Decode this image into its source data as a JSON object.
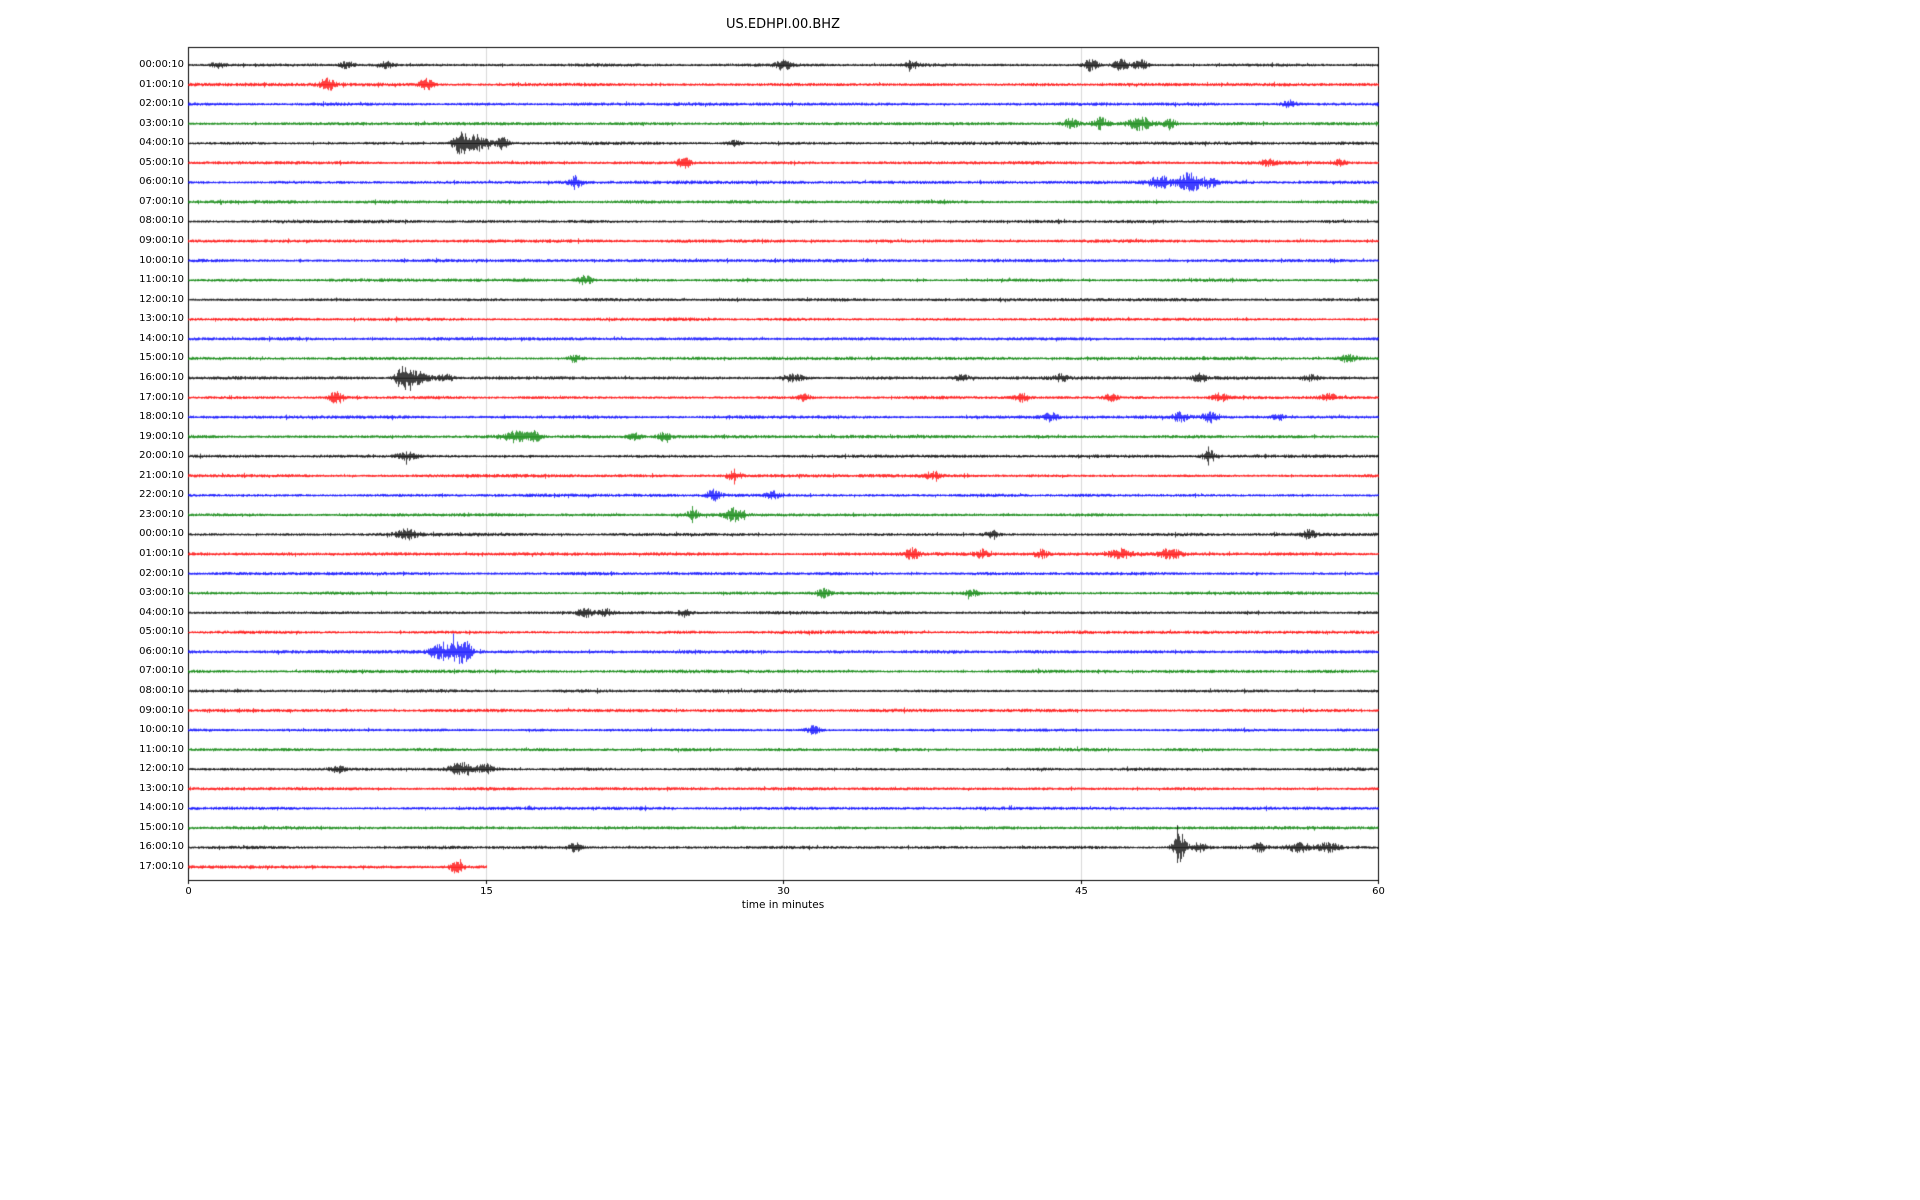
{
  "title": "US.EDHPI.00.BHZ",
  "chart_data": {
    "type": "line",
    "subtype": "helicorder-seismogram",
    "title": "US.EDHPI.00.BHZ",
    "xlabel": "time in minutes",
    "xlim": [
      0,
      60
    ],
    "x_ticks": [
      0,
      15,
      30,
      45,
      60
    ],
    "grid": "vertical-gridlines-at-15-30-45",
    "legend": "none",
    "background_color": "#ffffff",
    "gridline_color": "#d9d9d9",
    "trace_colors_cycle": [
      "#000000",
      "#ff0000",
      "#0000ff",
      "#008000"
    ],
    "rows": [
      {
        "label": "00:00:10",
        "color": "#000000",
        "start": 0,
        "end": 60,
        "events": [
          {
            "m": 1.5,
            "a": 2
          },
          {
            "m": 8,
            "a": 2.5
          },
          {
            "m": 10,
            "a": 2
          },
          {
            "m": 30,
            "a": 3
          },
          {
            "m": 36.5,
            "a": 2
          },
          {
            "m": 45.5,
            "a": 4
          },
          {
            "m": 47,
            "a": 4.5
          },
          {
            "m": 48,
            "a": 3
          }
        ]
      },
      {
        "label": "01:00:10",
        "color": "#ff0000",
        "start": 0,
        "end": 60,
        "events": [
          {
            "m": 7,
            "a": 4
          },
          {
            "m": 12,
            "a": 3.5
          }
        ]
      },
      {
        "label": "02:00:10",
        "color": "#0000ff",
        "start": 0,
        "end": 60,
        "events": [
          {
            "m": 55.5,
            "a": 2.5
          }
        ]
      },
      {
        "label": "03:00:10",
        "color": "#008000",
        "start": 0,
        "end": 60,
        "events": [
          {
            "m": 44.5,
            "a": 3
          },
          {
            "m": 46,
            "a": 3.5
          },
          {
            "m": 48,
            "a": 4,
            "w": 0.4
          },
          {
            "m": 49.5,
            "a": 2.5
          }
        ]
      },
      {
        "label": "04:00:10",
        "color": "#000000",
        "start": 0,
        "end": 60,
        "events": [
          {
            "m": 13.7,
            "a": 7
          },
          {
            "m": 14.5,
            "a": 5,
            "w": 0.4
          },
          {
            "m": 15.8,
            "a": 3.5
          },
          {
            "m": 27.5,
            "a": 1.8
          }
        ]
      },
      {
        "label": "05:00:10",
        "color": "#ff0000",
        "start": 0,
        "end": 60,
        "events": [
          {
            "m": 25,
            "a": 3.5
          },
          {
            "m": 54.5,
            "a": 2
          },
          {
            "m": 58,
            "a": 2
          }
        ]
      },
      {
        "label": "06:00:10",
        "color": "#0000ff",
        "start": 0,
        "end": 60,
        "events": [
          {
            "m": 19.5,
            "a": 4
          },
          {
            "m": 49,
            "a": 4,
            "w": 0.4
          },
          {
            "m": 50.5,
            "a": 6,
            "w": 0.4
          },
          {
            "m": 51.5,
            "a": 3
          }
        ]
      },
      {
        "label": "07:00:10",
        "color": "#008000",
        "start": 0,
        "end": 60,
        "events": []
      },
      {
        "label": "08:00:10",
        "color": "#000000",
        "start": 0,
        "end": 60,
        "events": []
      },
      {
        "label": "09:00:10",
        "color": "#ff0000",
        "start": 0,
        "end": 60,
        "events": []
      },
      {
        "label": "10:00:10",
        "color": "#0000ff",
        "start": 0,
        "end": 60,
        "events": []
      },
      {
        "label": "11:00:10",
        "color": "#008000",
        "start": 0,
        "end": 60,
        "events": [
          {
            "m": 20,
            "a": 3
          }
        ]
      },
      {
        "label": "12:00:10",
        "color": "#000000",
        "start": 0,
        "end": 60,
        "events": []
      },
      {
        "label": "13:00:10",
        "color": "#ff0000",
        "start": 0,
        "end": 60,
        "events": []
      },
      {
        "label": "14:00:10",
        "color": "#0000ff",
        "start": 0,
        "end": 60,
        "events": []
      },
      {
        "label": "15:00:10",
        "color": "#008000",
        "start": 0,
        "end": 60,
        "events": [
          {
            "m": 19.5,
            "a": 2.5
          },
          {
            "m": 58.5,
            "a": 2.5
          }
        ]
      },
      {
        "label": "16:00:10",
        "color": "#000000",
        "start": 0,
        "end": 60,
        "events": [
          {
            "m": 10.8,
            "a": 6
          },
          {
            "m": 11.5,
            "a": 4,
            "w": 0.5
          },
          {
            "m": 13,
            "a": 2.5
          },
          {
            "m": 30.5,
            "a": 2.5,
            "w": 0.4
          },
          {
            "m": 39,
            "a": 2
          },
          {
            "m": 44,
            "a": 2
          },
          {
            "m": 51,
            "a": 2.5
          },
          {
            "m": 56.5,
            "a": 2
          }
        ]
      },
      {
        "label": "17:00:10",
        "color": "#ff0000",
        "start": 0,
        "end": 60,
        "events": [
          {
            "m": 7.5,
            "a": 4
          },
          {
            "m": 31,
            "a": 2
          },
          {
            "m": 42,
            "a": 2.5
          },
          {
            "m": 46.5,
            "a": 2
          },
          {
            "m": 52,
            "a": 2.5
          },
          {
            "m": 57.5,
            "a": 2.5
          }
        ]
      },
      {
        "label": "18:00:10",
        "color": "#0000ff",
        "start": 0,
        "end": 60,
        "events": [
          {
            "m": 43.5,
            "a": 2.5
          },
          {
            "m": 50,
            "a": 3
          },
          {
            "m": 51.5,
            "a": 3.5
          },
          {
            "m": 55,
            "a": 2
          }
        ]
      },
      {
        "label": "19:00:10",
        "color": "#008000",
        "start": 0,
        "end": 60,
        "events": [
          {
            "m": 16.5,
            "a": 3.5,
            "w": 0.5
          },
          {
            "m": 17.5,
            "a": 3
          },
          {
            "m": 22.5,
            "a": 2.5
          },
          {
            "m": 24,
            "a": 2.5
          }
        ]
      },
      {
        "label": "20:00:10",
        "color": "#000000",
        "start": 0,
        "end": 60,
        "events": [
          {
            "m": 11,
            "a": 2.5,
            "w": 0.4
          },
          {
            "m": 51.5,
            "a": 3.5
          }
        ]
      },
      {
        "label": "21:00:10",
        "color": "#ff0000",
        "start": 0,
        "end": 60,
        "events": [
          {
            "m": 27.5,
            "a": 3
          },
          {
            "m": 37.5,
            "a": 2.5
          }
        ]
      },
      {
        "label": "22:00:10",
        "color": "#0000ff",
        "start": 0,
        "end": 60,
        "events": [
          {
            "m": 26.5,
            "a": 3.5
          },
          {
            "m": 29.5,
            "a": 2.5
          }
        ]
      },
      {
        "label": "23:00:10",
        "color": "#008000",
        "start": 0,
        "end": 60,
        "events": [
          {
            "m": 25.5,
            "a": 2.5
          },
          {
            "m": 27.5,
            "a": 4,
            "w": 0.3
          }
        ]
      },
      {
        "label": "00:00:10",
        "color": "#000000",
        "start": 0,
        "end": 60,
        "events": [
          {
            "m": 11,
            "a": 3,
            "w": 0.4
          },
          {
            "m": 40.5,
            "a": 2
          },
          {
            "m": 56.5,
            "a": 2.5
          }
        ]
      },
      {
        "label": "01:00:10",
        "color": "#ff0000",
        "start": 0,
        "end": 60,
        "events": [
          {
            "m": 36.5,
            "a": 3.5
          },
          {
            "m": 40,
            "a": 2.5
          },
          {
            "m": 43,
            "a": 2.5
          },
          {
            "m": 47,
            "a": 3,
            "w": 0.4
          },
          {
            "m": 49.5,
            "a": 3,
            "w": 0.4
          }
        ]
      },
      {
        "label": "02:00:10",
        "color": "#0000ff",
        "start": 0,
        "end": 60,
        "events": []
      },
      {
        "label": "03:00:10",
        "color": "#008000",
        "start": 0,
        "end": 60,
        "events": [
          {
            "m": 32,
            "a": 2.5
          },
          {
            "m": 39.5,
            "a": 2
          }
        ]
      },
      {
        "label": "04:00:10",
        "color": "#000000",
        "start": 0,
        "end": 60,
        "events": [
          {
            "m": 20,
            "a": 3
          },
          {
            "m": 21,
            "a": 2.5
          },
          {
            "m": 25,
            "a": 2
          }
        ]
      },
      {
        "label": "05:00:10",
        "color": "#ff0000",
        "start": 0,
        "end": 60,
        "events": []
      },
      {
        "label": "06:00:10",
        "color": "#0000ff",
        "start": 0,
        "end": 60,
        "events": [
          {
            "m": 12.5,
            "a": 4
          },
          {
            "m": 13.5,
            "a": 6,
            "w": 0.4
          },
          {
            "m": 14,
            "a": 4
          }
        ]
      },
      {
        "label": "07:00:10",
        "color": "#008000",
        "start": 0,
        "end": 60,
        "events": []
      },
      {
        "label": "08:00:10",
        "color": "#000000",
        "start": 0,
        "end": 60,
        "events": []
      },
      {
        "label": "09:00:10",
        "color": "#ff0000",
        "start": 0,
        "end": 60,
        "events": []
      },
      {
        "label": "10:00:10",
        "color": "#0000ff",
        "start": 0,
        "end": 60,
        "events": [
          {
            "m": 31.5,
            "a": 2.5
          }
        ]
      },
      {
        "label": "11:00:10",
        "color": "#008000",
        "start": 0,
        "end": 60,
        "events": []
      },
      {
        "label": "12:00:10",
        "color": "#000000",
        "start": 0,
        "end": 60,
        "events": [
          {
            "m": 7.5,
            "a": 2
          },
          {
            "m": 13.8,
            "a": 4,
            "w": 0.5
          },
          {
            "m": 15,
            "a": 3
          }
        ]
      },
      {
        "label": "13:00:10",
        "color": "#ff0000",
        "start": 0,
        "end": 60,
        "events": []
      },
      {
        "label": "14:00:10",
        "color": "#0000ff",
        "start": 0,
        "end": 60,
        "events": []
      },
      {
        "label": "15:00:10",
        "color": "#008000",
        "start": 0,
        "end": 60,
        "events": []
      },
      {
        "label": "16:00:10",
        "color": "#000000",
        "start": 0,
        "end": 60,
        "events": [
          {
            "m": 19.5,
            "a": 3
          },
          {
            "m": 50,
            "a": 9
          },
          {
            "m": 51,
            "a": 3
          },
          {
            "m": 54,
            "a": 2.5
          },
          {
            "m": 56,
            "a": 3,
            "w": 0.4
          },
          {
            "m": 57.5,
            "a": 3,
            "w": 0.4
          }
        ]
      },
      {
        "label": "17:00:10",
        "color": "#ff0000",
        "start": 0,
        "end": 15,
        "events": [
          {
            "m": 13.5,
            "a": 3.5
          }
        ]
      }
    ]
  }
}
